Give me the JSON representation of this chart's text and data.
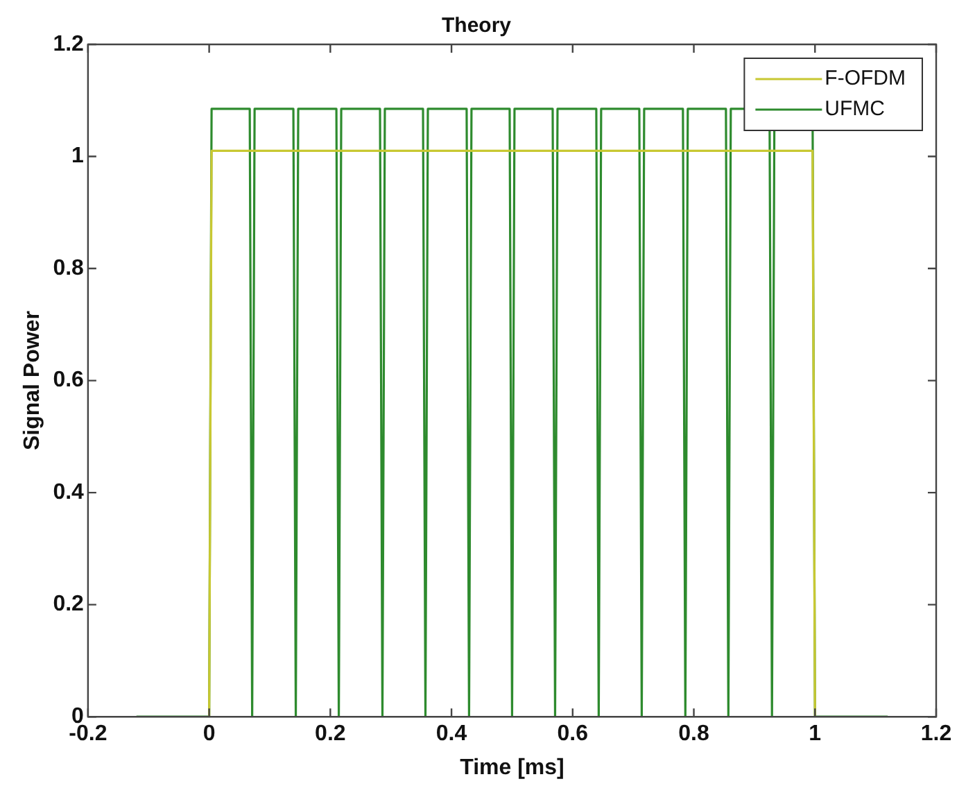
{
  "chart_data": {
    "type": "line",
    "title": "Theory",
    "xlabel": "Time [ms]",
    "ylabel": "Signal Power",
    "xlim": [
      -0.2,
      1.2
    ],
    "xticks": [
      -0.2,
      0,
      0.2,
      0.4,
      0.6,
      0.8,
      1,
      1.2
    ],
    "ylim": [
      0,
      1.2
    ],
    "yticks": [
      0,
      0.2,
      0.4,
      0.6,
      0.8,
      1,
      1.2
    ],
    "grid": false,
    "legend": "top right",
    "marker": "none",
    "line_style": "solid",
    "series": [
      {
        "name": "F-OFDM",
        "color": "#c8c832",
        "x": [
          0,
          0.004,
          0.996,
          1
        ],
        "values": [
          0,
          1.01,
          1.01,
          0
        ]
      },
      {
        "name": "UFMC",
        "color": "#2e8b2e",
        "x": [
          -0.12,
          0,
          0.004,
          0.067,
          0.071,
          0.075,
          0.139,
          0.143,
          0.147,
          0.21,
          0.214,
          0.218,
          0.282,
          0.286,
          0.29,
          0.353,
          0.357,
          0.361,
          0.425,
          0.429,
          0.433,
          0.496,
          0.5,
          0.504,
          0.567,
          0.571,
          0.575,
          0.639,
          0.643,
          0.647,
          0.71,
          0.714,
          0.718,
          0.782,
          0.786,
          0.79,
          0.853,
          0.857,
          0.861,
          0.925,
          0.929,
          0.933,
          0.996,
          1,
          1.12
        ],
        "values": [
          0,
          0,
          1.085,
          1.085,
          0,
          1.085,
          1.085,
          0,
          1.085,
          1.085,
          0,
          1.085,
          1.085,
          0,
          1.085,
          1.085,
          0,
          1.085,
          1.085,
          0,
          1.085,
          1.085,
          0,
          1.085,
          1.085,
          0,
          1.085,
          1.085,
          0,
          1.085,
          1.085,
          0,
          1.085,
          1.085,
          0,
          1.085,
          1.085,
          0,
          1.085,
          1.085,
          0,
          1.085,
          1.085,
          0,
          0
        ]
      }
    ]
  }
}
